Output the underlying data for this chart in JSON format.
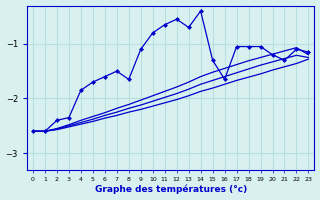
{
  "xlabel": "Graphe des températures (°c)",
  "background_color": "#d8f0f0",
  "grid_color": "#b8dede",
  "line_color": "#0000cc",
  "hours": [
    0,
    1,
    2,
    3,
    4,
    5,
    6,
    7,
    8,
    9,
    10,
    11,
    12,
    13,
    14,
    15,
    16,
    17,
    18,
    19,
    20,
    21,
    22,
    23
  ],
  "temp_main": [
    -2.6,
    -2.6,
    -2.4,
    -2.35,
    -1.85,
    -1.7,
    -1.6,
    -1.5,
    -1.65,
    -1.1,
    -0.8,
    -0.65,
    -0.55,
    -0.7,
    -0.4,
    -1.3,
    -1.65,
    -1.05,
    -1.05,
    -1.05,
    -1.2,
    -1.3,
    -1.1,
    -1.15
  ],
  "temp_line1": [
    -2.6,
    -2.6,
    -2.55,
    -2.48,
    -2.4,
    -2.33,
    -2.26,
    -2.18,
    -2.11,
    -2.03,
    -1.95,
    -1.87,
    -1.79,
    -1.7,
    -1.6,
    -1.52,
    -1.45,
    -1.38,
    -1.31,
    -1.25,
    -1.19,
    -1.13,
    -1.07,
    -1.2
  ],
  "temp_line2": [
    -2.6,
    -2.6,
    -2.56,
    -2.5,
    -2.44,
    -2.38,
    -2.31,
    -2.25,
    -2.18,
    -2.12,
    -2.05,
    -1.98,
    -1.91,
    -1.83,
    -1.74,
    -1.67,
    -1.6,
    -1.53,
    -1.46,
    -1.39,
    -1.33,
    -1.27,
    -1.21,
    -1.25
  ],
  "temp_line3": [
    -2.6,
    -2.6,
    -2.57,
    -2.52,
    -2.47,
    -2.42,
    -2.36,
    -2.31,
    -2.25,
    -2.2,
    -2.14,
    -2.08,
    -2.02,
    -1.95,
    -1.87,
    -1.81,
    -1.74,
    -1.67,
    -1.61,
    -1.55,
    -1.48,
    -1.42,
    -1.36,
    -1.28
  ],
  "ylim": [
    -3.3,
    -0.3
  ],
  "xlim": [
    -0.5,
    23.5
  ],
  "yticks": [
    -3,
    -2,
    -1
  ],
  "xticks": [
    0,
    1,
    2,
    3,
    4,
    5,
    6,
    7,
    8,
    9,
    10,
    11,
    12,
    13,
    14,
    15,
    16,
    17,
    18,
    19,
    20,
    21,
    22,
    23
  ],
  "figsize": [
    3.2,
    2.0
  ],
  "dpi": 100
}
